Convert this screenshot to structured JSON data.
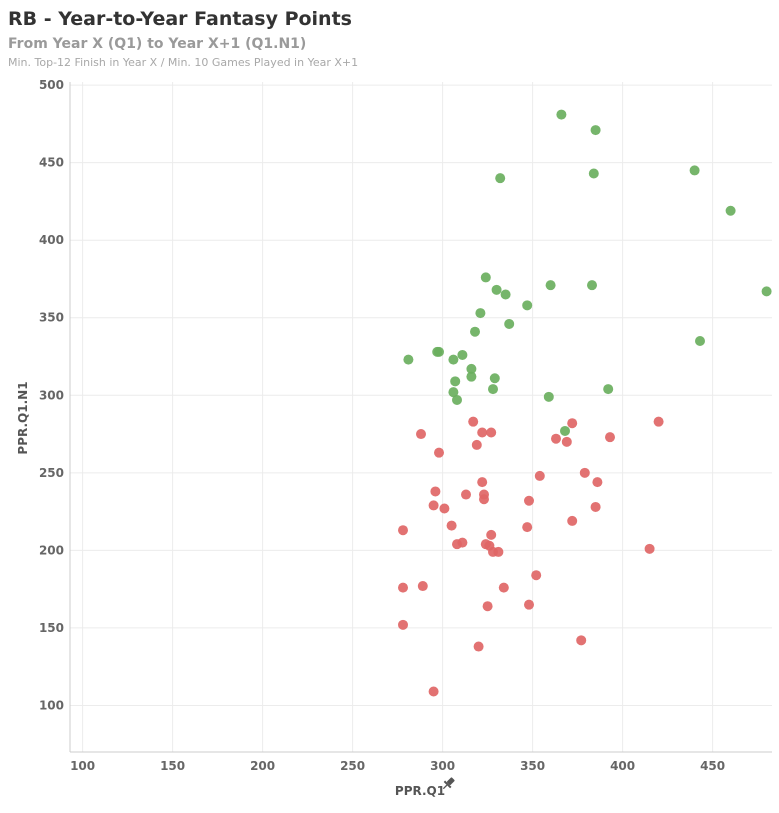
{
  "header": {
    "title": "RB - Year-to-Year Fantasy Points",
    "subtitle": "From Year X (Q1) to Year X+1 (Q1.N1)",
    "note": "Min. Top-12 Finish in Year X / Min. 10 Games Played in Year X+1"
  },
  "colors": {
    "green": "#6aaf5e",
    "red": "#e06666",
    "grid": "#ececec",
    "axis": "#cccccc"
  },
  "chart_data": {
    "type": "scatter",
    "xlabel": "PPR.Q1",
    "ylabel": "PPR.Q1.N1",
    "xlim": [
      93,
      483
    ],
    "ylim": [
      70,
      502
    ],
    "xticks": [
      100,
      150,
      200,
      250,
      300,
      350,
      400,
      450
    ],
    "yticks": [
      100,
      150,
      200,
      250,
      300,
      350,
      400,
      450,
      500
    ],
    "grid": true,
    "series": [
      {
        "color": "green",
        "points": [
          [
            366,
            481
          ],
          [
            385,
            471
          ],
          [
            332,
            440
          ],
          [
            384,
            443
          ],
          [
            440,
            445
          ],
          [
            460,
            419
          ],
          [
            480,
            367
          ],
          [
            324,
            376
          ],
          [
            330,
            368
          ],
          [
            335,
            365
          ],
          [
            347,
            358
          ],
          [
            360,
            371
          ],
          [
            383,
            371
          ],
          [
            321,
            353
          ],
          [
            318,
            341
          ],
          [
            337,
            346
          ],
          [
            443,
            335
          ],
          [
            281,
            323
          ],
          [
            297,
            328
          ],
          [
            298,
            328
          ],
          [
            306,
            323
          ],
          [
            311,
            326
          ],
          [
            316,
            317
          ],
          [
            316,
            312
          ],
          [
            307,
            309
          ],
          [
            329,
            311
          ],
          [
            328,
            304
          ],
          [
            306,
            302
          ],
          [
            308,
            297
          ],
          [
            359,
            299
          ],
          [
            392,
            304
          ],
          [
            368,
            277
          ]
        ]
      },
      {
        "color": "red",
        "points": [
          [
            317,
            283
          ],
          [
            288,
            275
          ],
          [
            322,
            276
          ],
          [
            327,
            276
          ],
          [
            372,
            282
          ],
          [
            420,
            283
          ],
          [
            319,
            268
          ],
          [
            363,
            272
          ],
          [
            369,
            270
          ],
          [
            393,
            273
          ],
          [
            298,
            263
          ],
          [
            322,
            244
          ],
          [
            354,
            248
          ],
          [
            379,
            250
          ],
          [
            386,
            244
          ],
          [
            296,
            238
          ],
          [
            313,
            236
          ],
          [
            323,
            236
          ],
          [
            323,
            233
          ],
          [
            348,
            232
          ],
          [
            295,
            229
          ],
          [
            301,
            227
          ],
          [
            385,
            228
          ],
          [
            278,
            213
          ],
          [
            305,
            216
          ],
          [
            347,
            215
          ],
          [
            372,
            219
          ],
          [
            327,
            210
          ],
          [
            308,
            204
          ],
          [
            311,
            205
          ],
          [
            324,
            204
          ],
          [
            326,
            203
          ],
          [
            328,
            199
          ],
          [
            331,
            199
          ],
          [
            415,
            201
          ],
          [
            352,
            184
          ],
          [
            278,
            176
          ],
          [
            289,
            177
          ],
          [
            334,
            176
          ],
          [
            278,
            152
          ],
          [
            325,
            164
          ],
          [
            348,
            165
          ],
          [
            377,
            142
          ],
          [
            320,
            138
          ],
          [
            295,
            109
          ]
        ]
      }
    ]
  }
}
